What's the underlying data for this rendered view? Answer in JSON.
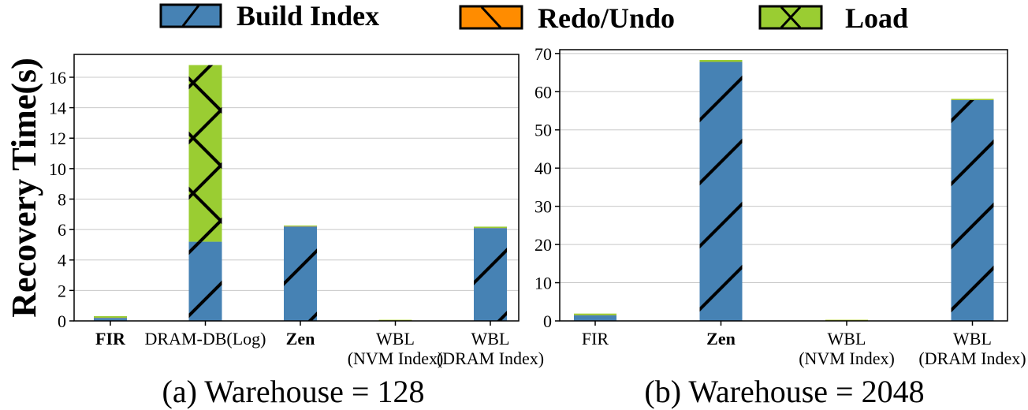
{
  "legend": {
    "items": [
      {
        "label": "Build Index",
        "color": "#4682b4",
        "hatch": "slash"
      },
      {
        "label": "Redo/Undo",
        "color": "#ff8c00",
        "hatch": "backslash"
      },
      {
        "label": "Load",
        "color": "#9acd32",
        "hatch": "cross"
      }
    ]
  },
  "shared": {
    "ylabel": "Recovery Time(s)"
  },
  "chart_data": [
    {
      "type": "bar",
      "stacked": true,
      "caption": "(a) Warehouse = 128",
      "categories": [
        {
          "lines": [
            "FIR"
          ],
          "bold": true
        },
        {
          "lines": [
            "DRAM-DB(Log)"
          ],
          "bold": false
        },
        {
          "lines": [
            "Zen"
          ],
          "bold": true
        },
        {
          "lines": [
            "WBL",
            "(NVM Index)"
          ],
          "bold": false
        },
        {
          "lines": [
            "WBL",
            "(DRAM Index)"
          ],
          "bold": false
        }
      ],
      "series": [
        {
          "name": "Build Index",
          "values": [
            0.2,
            5.2,
            6.2,
            0.02,
            6.1
          ]
        },
        {
          "name": "Redo/Undo",
          "values": [
            0.01,
            0.0,
            0.01,
            0.01,
            0.01
          ]
        },
        {
          "name": "Load",
          "values": [
            0.1,
            11.6,
            0.05,
            0.02,
            0.08
          ]
        }
      ],
      "ylim": [
        0,
        17.5
      ],
      "yticks": [
        0,
        2,
        4,
        6,
        8,
        10,
        12,
        14,
        16
      ],
      "grid": true
    },
    {
      "type": "bar",
      "stacked": true,
      "caption": "(b) Warehouse = 2048",
      "categories": [
        {
          "lines": [
            "FIR"
          ],
          "bold": false
        },
        {
          "lines": [
            "Zen"
          ],
          "bold": true
        },
        {
          "lines": [
            "WBL",
            "(NVM Index)"
          ],
          "bold": false
        },
        {
          "lines": [
            "WBL",
            "(DRAM Index)"
          ],
          "bold": false
        }
      ],
      "series": [
        {
          "name": "Build Index",
          "values": [
            1.5,
            67.8,
            0.1,
            57.8
          ]
        },
        {
          "name": "Redo/Undo",
          "values": [
            0.02,
            0.02,
            0.02,
            0.02
          ]
        },
        {
          "name": "Load",
          "values": [
            0.4,
            0.5,
            0.1,
            0.3
          ]
        }
      ],
      "ylim": [
        0,
        71
      ],
      "yticks": [
        0,
        10,
        20,
        30,
        40,
        50,
        60,
        70
      ],
      "grid": true
    }
  ]
}
